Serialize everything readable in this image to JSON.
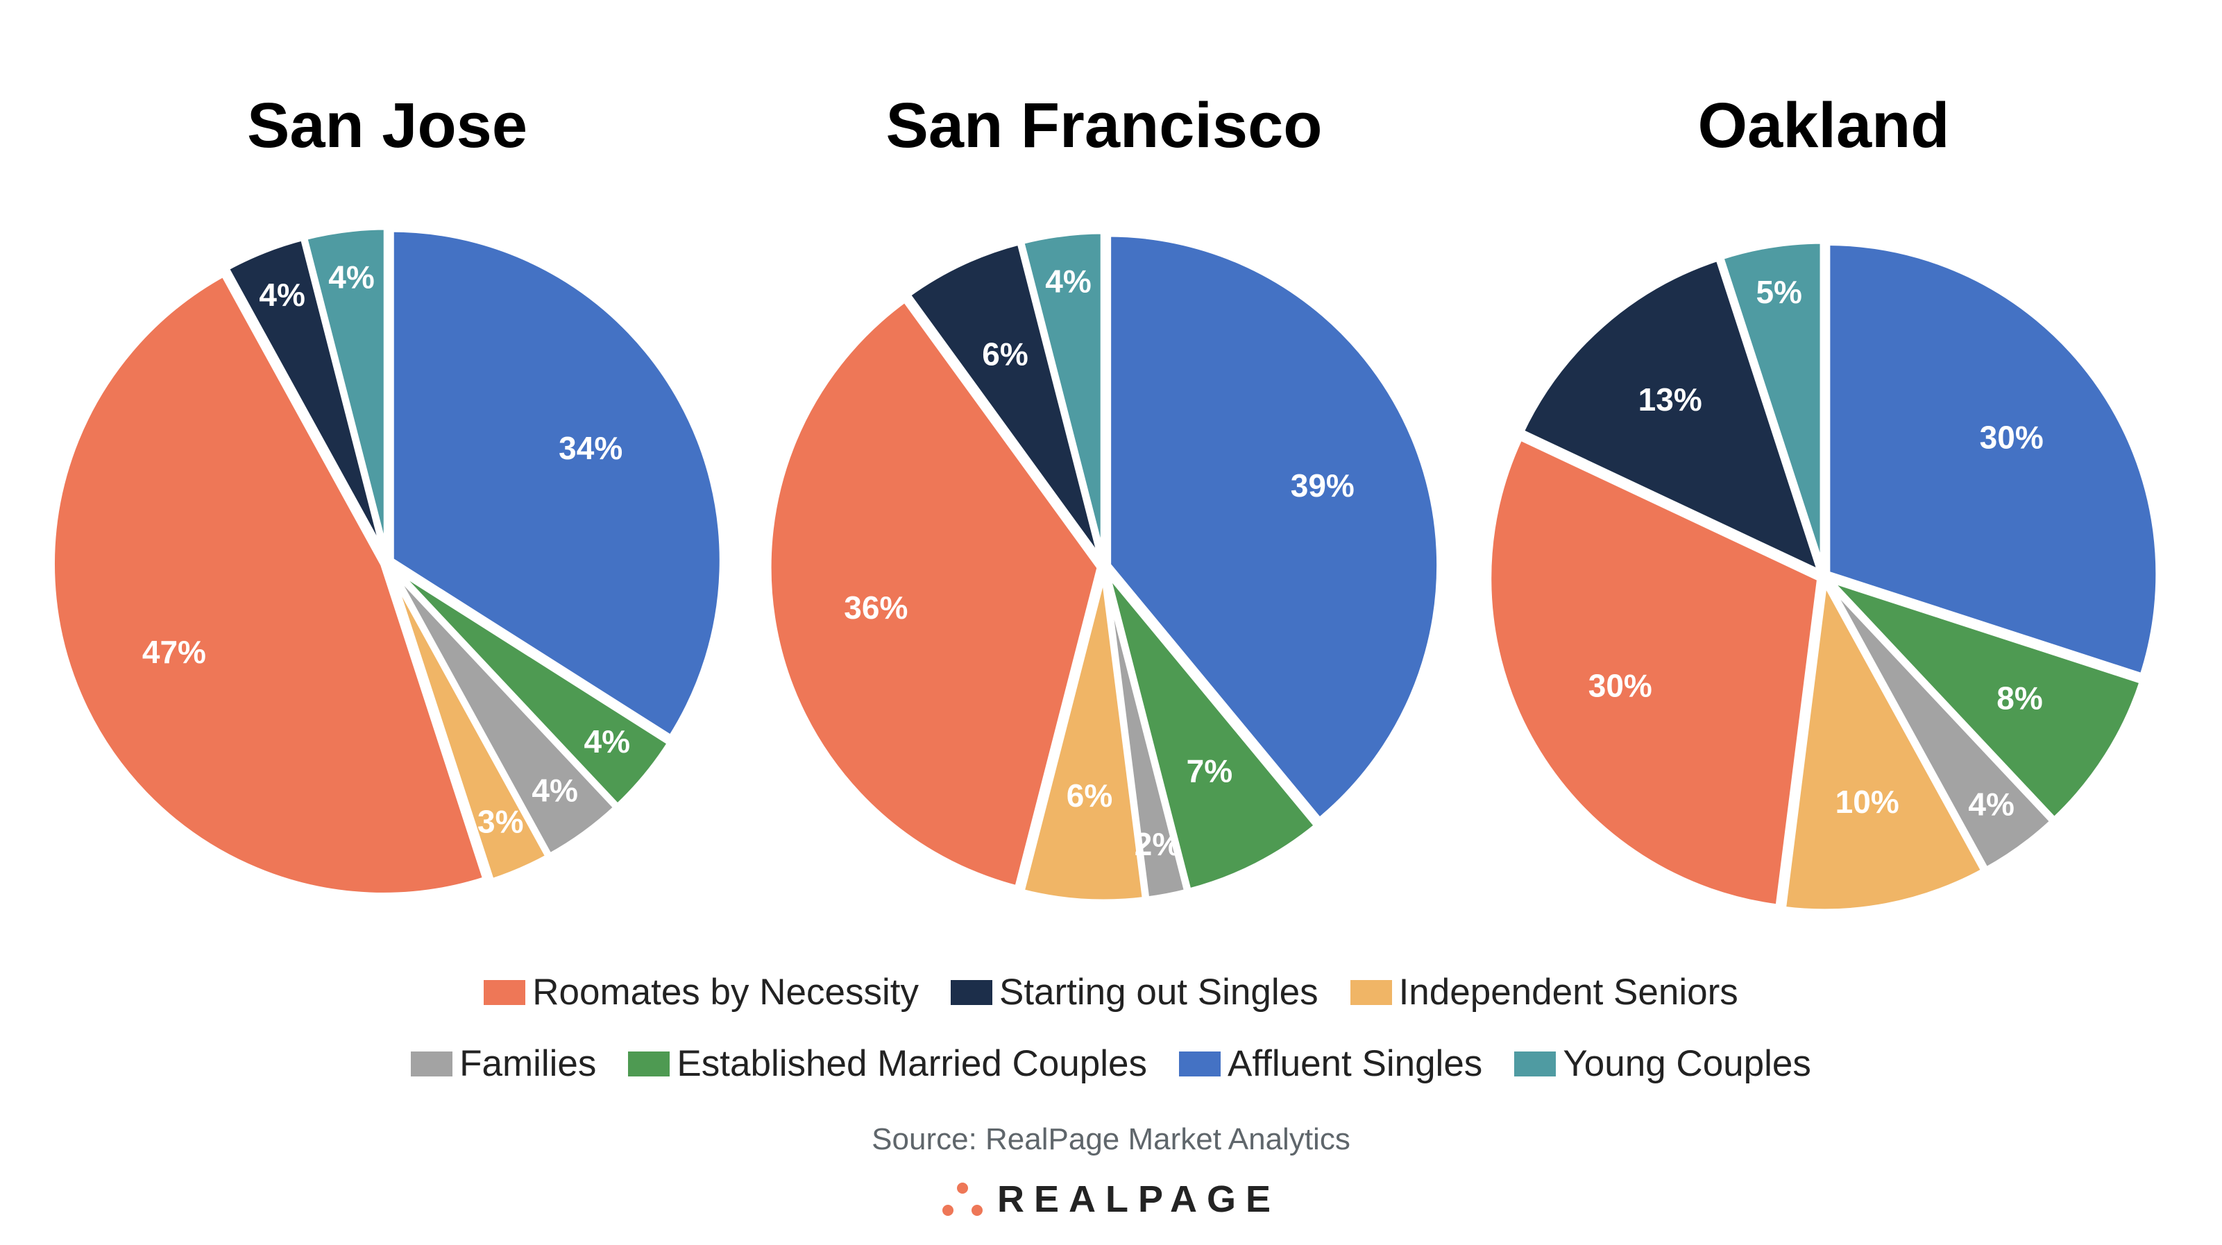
{
  "chart_data": {
    "type": "pie",
    "categories": [
      "Affluent Singles",
      "Established Married Couples",
      "Families",
      "Independent Seniors",
      "Roomates by Necessity",
      "Starting out Singles",
      "Young Couples"
    ],
    "colors": [
      "#4472c4",
      "#4e9a52",
      "#a3a3a3",
      "#f0b566",
      "#ee7757",
      "#1c2e4a",
      "#4f9ba2"
    ],
    "charts": [
      {
        "title": "San Jose",
        "values": [
          34,
          4,
          4,
          3,
          47,
          4,
          4
        ],
        "labels": [
          "34%",
          "4%",
          "4%",
          "3%",
          "47%",
          "4%",
          "4%"
        ]
      },
      {
        "title": "San Francisco",
        "values": [
          39,
          7,
          2,
          6,
          36,
          6,
          4
        ],
        "labels": [
          "39%",
          "7%",
          "2%",
          "6%",
          "36%",
          "6%",
          "4%"
        ]
      },
      {
        "title": "Oakland",
        "values": [
          30,
          8,
          4,
          10,
          30,
          13,
          5
        ],
        "labels": [
          "30%",
          "8%",
          "4%",
          "10%",
          "30%",
          "13%",
          "5%"
        ]
      }
    ],
    "legend": {
      "placement": "bottom",
      "row1": [
        "Roomates by Necessity",
        "Starting out Singles",
        "Independent Seniors"
      ],
      "row2": [
        "Families",
        "Established Married Couples",
        "Affluent Singles",
        "Young Couples"
      ]
    }
  },
  "source": "Source: RealPage Market Analytics",
  "logo": "REALPAGE"
}
